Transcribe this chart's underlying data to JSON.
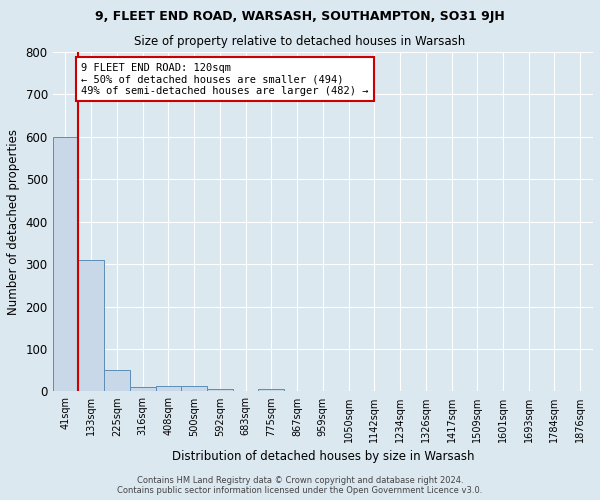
{
  "title1": "9, FLEET END ROAD, WARSASH, SOUTHAMPTON, SO31 9JH",
  "title2": "Size of property relative to detached houses in Warsash",
  "xlabel": "Distribution of detached houses by size in Warsash",
  "ylabel": "Number of detached properties",
  "footnote1": "Contains HM Land Registry data © Crown copyright and database right 2024.",
  "footnote2": "Contains public sector information licensed under the Open Government Licence v3.0.",
  "bin_labels": [
    "41sqm",
    "133sqm",
    "225sqm",
    "316sqm",
    "408sqm",
    "500sqm",
    "592sqm",
    "683sqm",
    "775sqm",
    "867sqm",
    "959sqm",
    "1050sqm",
    "1142sqm",
    "1234sqm",
    "1326sqm",
    "1417sqm",
    "1509sqm",
    "1601sqm",
    "1693sqm",
    "1784sqm",
    "1876sqm"
  ],
  "bar_heights": [
    600,
    310,
    50,
    10,
    12,
    13,
    5,
    0,
    6,
    0,
    0,
    0,
    0,
    0,
    0,
    0,
    0,
    0,
    0,
    0,
    0
  ],
  "bar_color": "#c8d8e8",
  "bar_edge_color": "#5b8db8",
  "vline_color": "#cc0000",
  "annotation_line1": "9 FLEET END ROAD: 120sqm",
  "annotation_line2": "← 50% of detached houses are smaller (494)",
  "annotation_line3": "49% of semi-detached houses are larger (482) →",
  "annotation_box_color": "#ffffff",
  "annotation_box_edge": "#cc0000",
  "ylim": [
    0,
    800
  ],
  "yticks": [
    0,
    100,
    200,
    300,
    400,
    500,
    600,
    700,
    800
  ],
  "background_color": "#dce8f0",
  "grid_color": "#ffffff",
  "plot_bg_color": "#dce8f0"
}
